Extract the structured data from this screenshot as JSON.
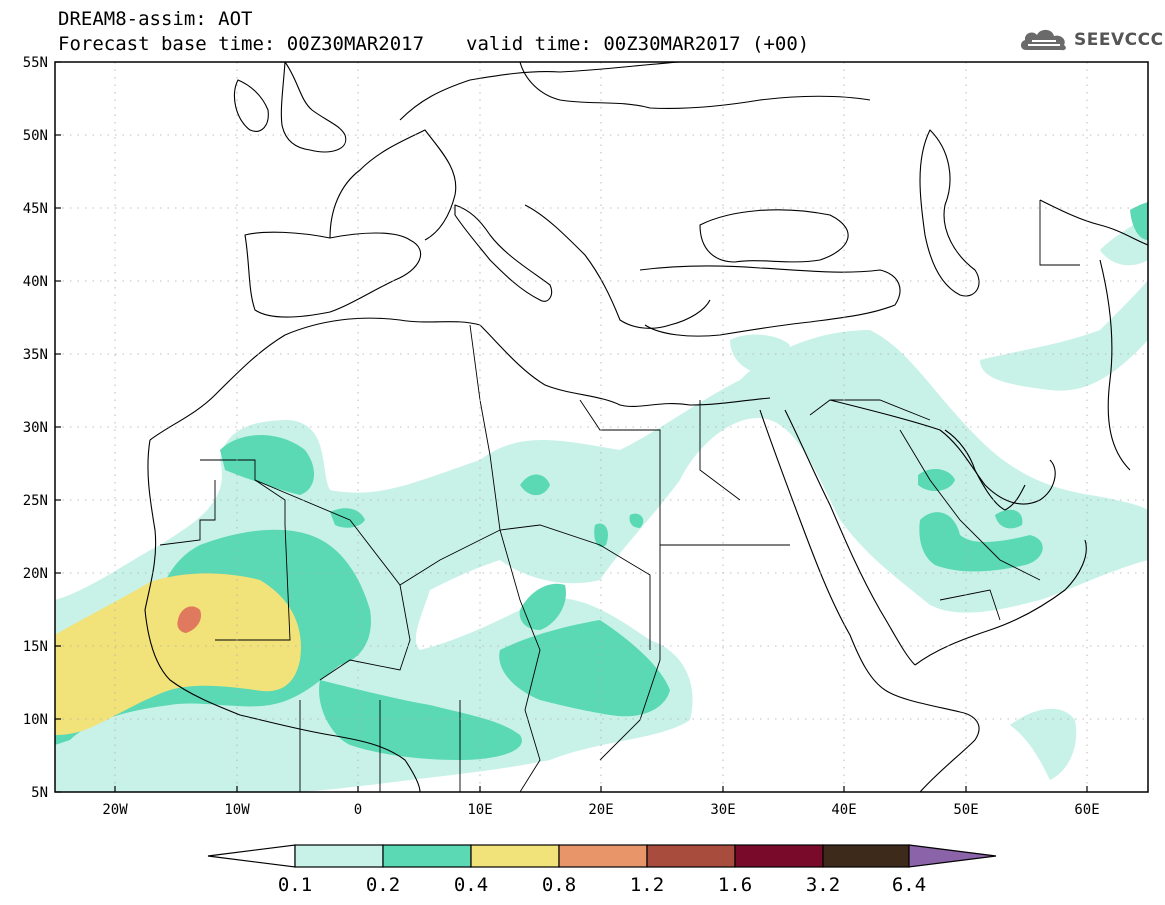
{
  "header": {
    "title": "DREAM8-assim: AOT",
    "base_time": "Forecast base time: 00Z30MAR2017",
    "valid_time": "valid time: 00Z30MAR2017 (+00)",
    "logo_text": "SEEVCCC"
  },
  "map": {
    "lat_labels": [
      "55N",
      "50N",
      "45N",
      "40N",
      "35N",
      "30N",
      "25N",
      "20N",
      "15N",
      "10N",
      "5N"
    ],
    "lon_labels": [
      "20W",
      "10W",
      "0",
      "10E",
      "20E",
      "30E",
      "40E",
      "50E",
      "60E"
    ],
    "gridlines": "dotted"
  },
  "colorbar": {
    "labels": [
      "0.1",
      "0.2",
      "0.4",
      "0.8",
      "1.2",
      "1.6",
      "3.2",
      "6.4"
    ],
    "colors": [
      "#ffffff",
      "#c8f2e8",
      "#5ad9b4",
      "#f2e27a",
      "#e8956a",
      "#a84c3e",
      "#7a0a2a",
      "#3d2a1a",
      "#8a63a8"
    ]
  }
}
